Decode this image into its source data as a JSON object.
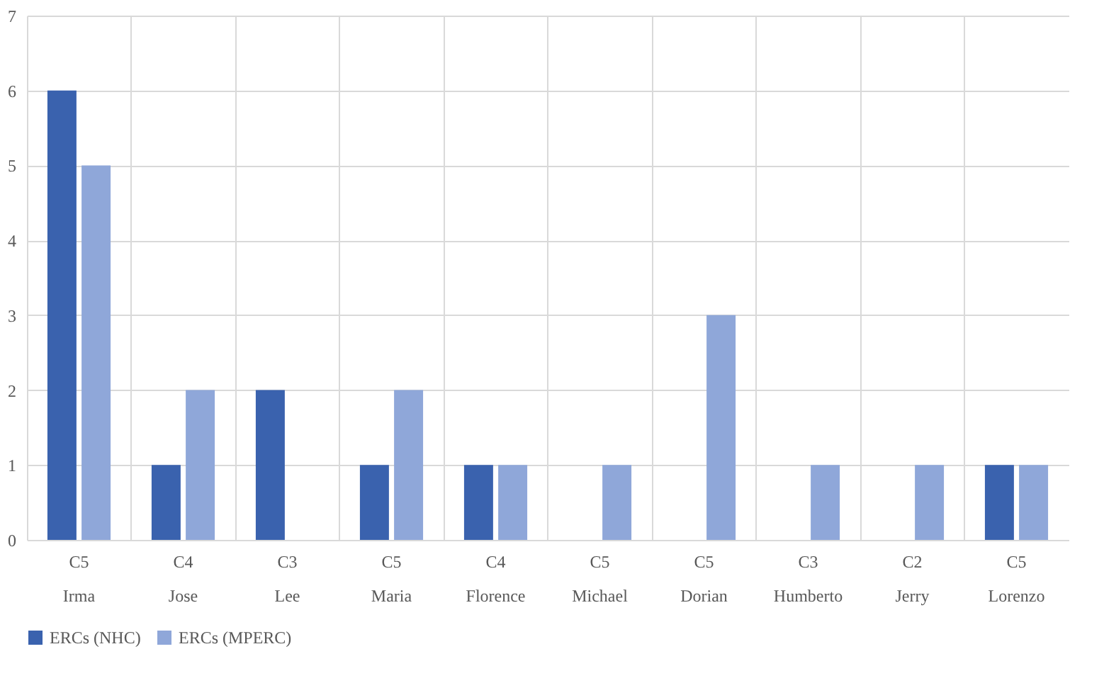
{
  "chart_data": {
    "type": "bar",
    "categories": [
      "C5\nIrma",
      "C4\nJose",
      "C3\nLee",
      "C5\nMaria",
      "C4\nFlorence",
      "C5\nMichael",
      "C5\nDorian",
      "C3\nHumberto",
      "C2\nJerry",
      "C5\nLorenzo"
    ],
    "series": [
      {
        "name": "ERCs (NHC)",
        "color": "#3a62ae",
        "values": [
          6,
          1,
          2,
          1,
          1,
          0,
          0,
          0,
          0,
          1
        ]
      },
      {
        "name": "ERCs (MPERC)",
        "color": "#8fa7d9",
        "values": [
          5,
          2,
          0,
          2,
          1,
          1,
          3,
          1,
          1,
          1
        ]
      }
    ],
    "ylim": [
      0,
      7
    ],
    "yticks": [
      0,
      1,
      2,
      3,
      4,
      5,
      6,
      7
    ],
    "grid": "y",
    "legend": "bottom"
  }
}
